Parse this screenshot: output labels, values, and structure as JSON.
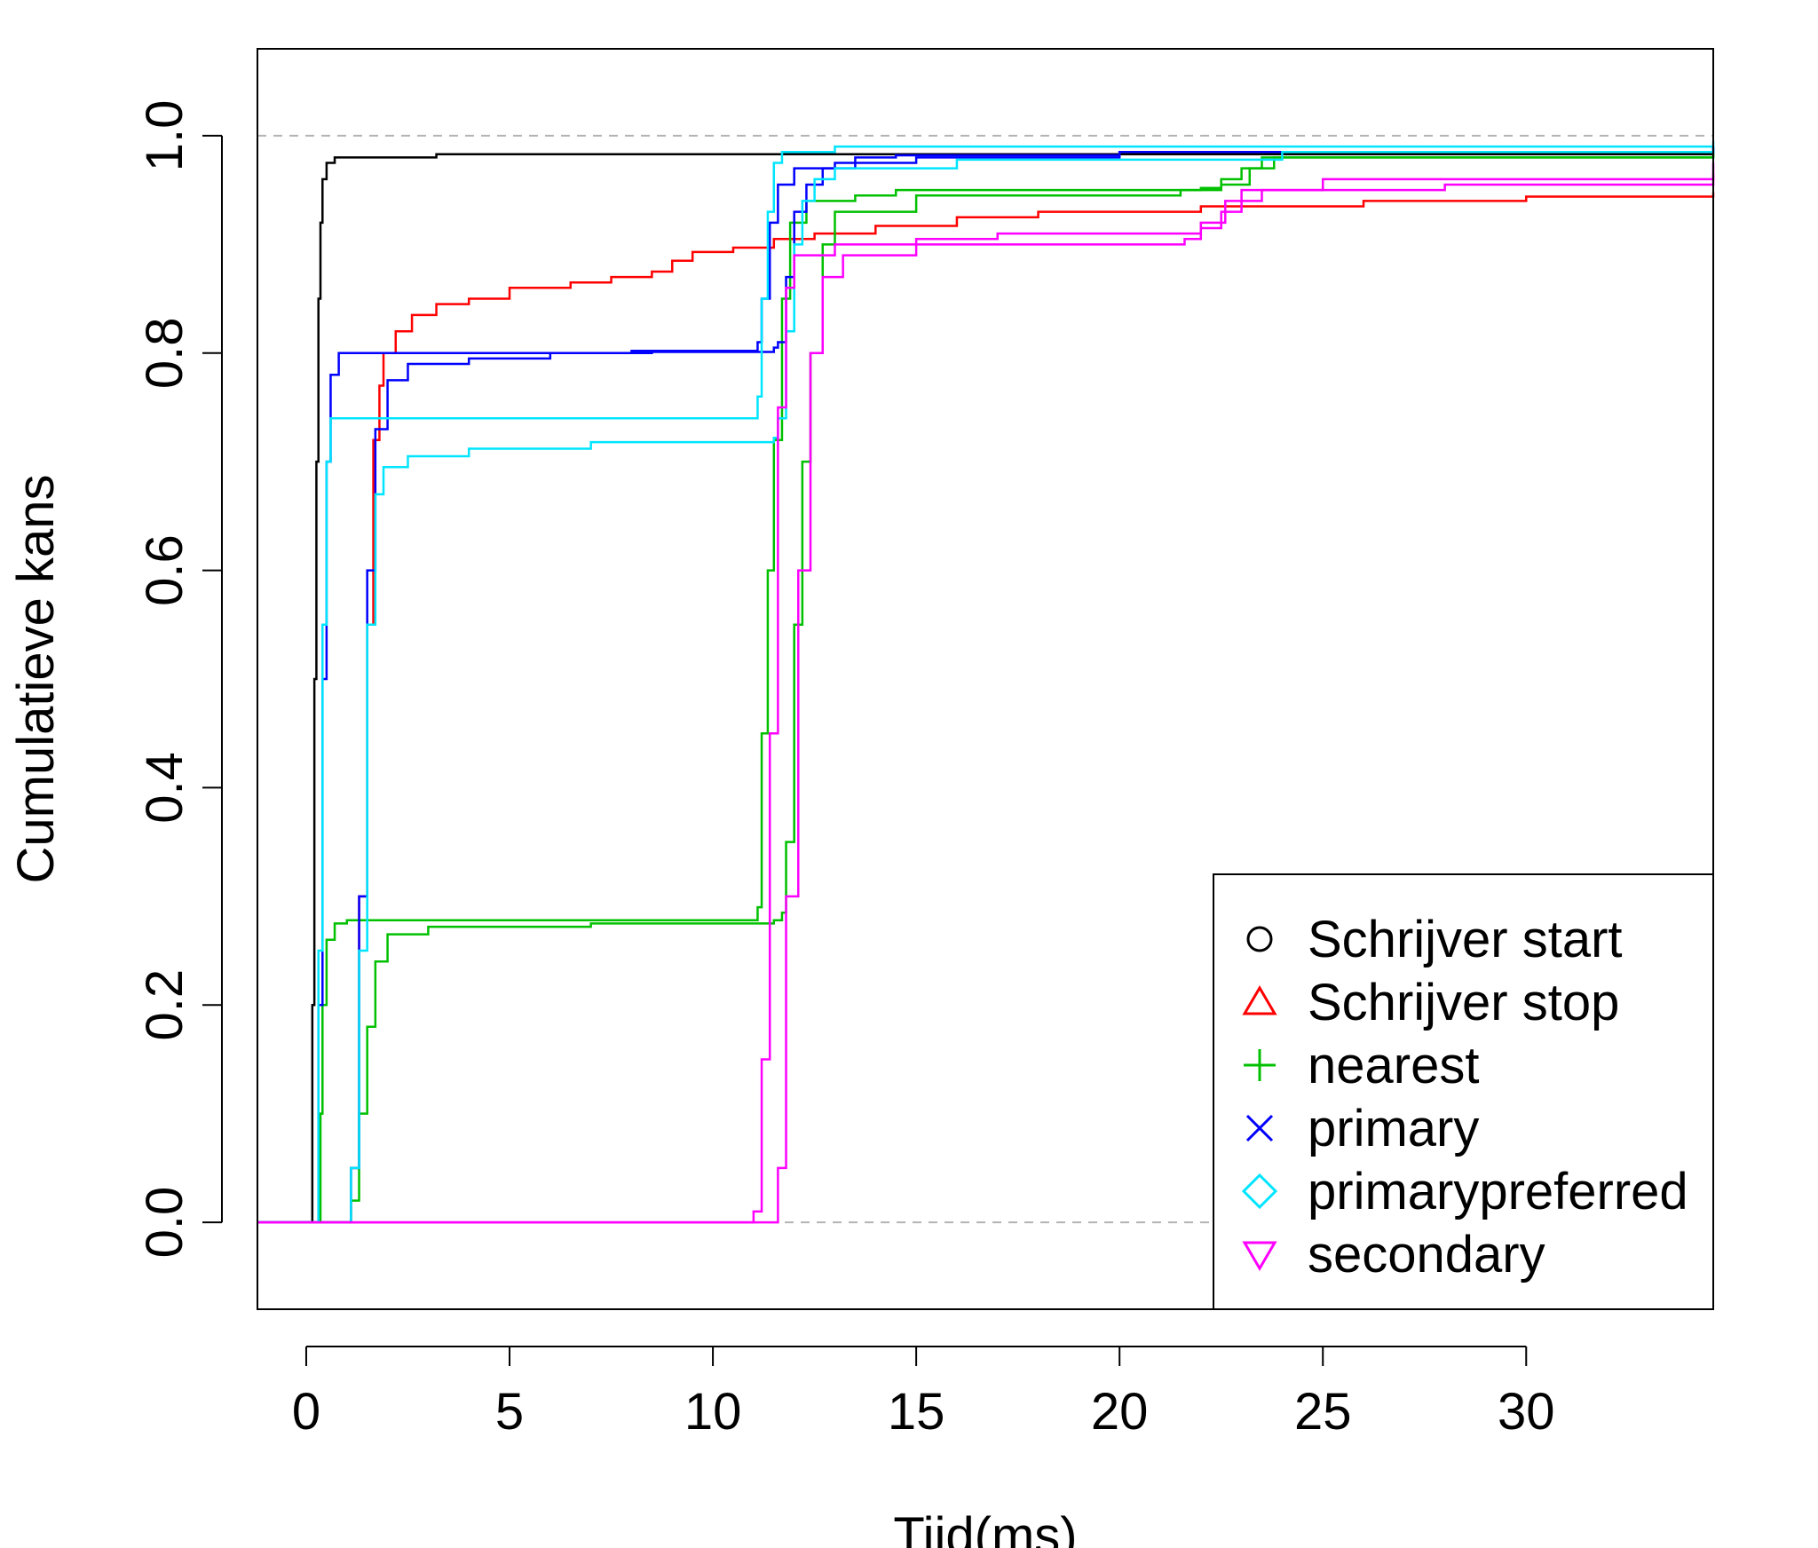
{
  "chart_data": {
    "type": "line",
    "title": "",
    "xlabel": "Tijd(ms)",
    "ylabel": "Cumulatieve kans",
    "xlim": [
      -1.2,
      34.6
    ],
    "ylim": [
      -0.08,
      1.08
    ],
    "xticks": [
      0,
      5,
      10,
      15,
      20,
      25,
      30
    ],
    "yticks": [
      0.0,
      0.2,
      0.4,
      0.6,
      0.8,
      1.0
    ],
    "xtick_labels": [
      "0",
      "5",
      "10",
      "15",
      "20",
      "25",
      "30"
    ],
    "ytick_labels": [
      "0.0",
      "0.2",
      "0.4",
      "0.6",
      "0.8",
      "1.0"
    ],
    "reference_lines": [
      0.0,
      1.0
    ],
    "reference_color": "#b3b3b3",
    "grid": false,
    "legend_position": "bottom-right",
    "series": [
      {
        "name": "Schrijver start",
        "symbol": "circle",
        "color": "#000000",
        "points": [
          [
            -1.2,
            0
          ],
          [
            0.1,
            0
          ],
          [
            0.15,
            0.2
          ],
          [
            0.2,
            0.5
          ],
          [
            0.25,
            0.7
          ],
          [
            0.3,
            0.85
          ],
          [
            0.35,
            0.92
          ],
          [
            0.4,
            0.96
          ],
          [
            0.5,
            0.975
          ],
          [
            0.7,
            0.98
          ],
          [
            1.5,
            0.98
          ],
          [
            3.2,
            0.983
          ],
          [
            34.6,
            0.984
          ]
        ]
      },
      {
        "name": "Schrijver stop",
        "symbol": "triangle",
        "color": "#ff0000",
        "points": [
          [
            -1.2,
            0
          ],
          [
            1.0,
            0
          ],
          [
            1.1,
            0.05
          ],
          [
            1.3,
            0.3
          ],
          [
            1.5,
            0.55
          ],
          [
            1.65,
            0.72
          ],
          [
            1.8,
            0.77
          ],
          [
            1.9,
            0.8
          ],
          [
            2.2,
            0.82
          ],
          [
            2.6,
            0.835
          ],
          [
            3.2,
            0.845
          ],
          [
            4.0,
            0.85
          ],
          [
            5.0,
            0.86
          ],
          [
            6.5,
            0.865
          ],
          [
            7.5,
            0.87
          ],
          [
            8.5,
            0.875
          ],
          [
            9.0,
            0.885
          ],
          [
            9.5,
            0.893
          ],
          [
            10.5,
            0.897
          ],
          [
            11.5,
            0.905
          ],
          [
            12.5,
            0.91
          ],
          [
            14.0,
            0.917
          ],
          [
            16.0,
            0.925
          ],
          [
            18.0,
            0.93
          ],
          [
            22.0,
            0.935
          ],
          [
            26.0,
            0.94
          ],
          [
            30.0,
            0.944
          ],
          [
            34.6,
            0.948
          ]
        ]
      },
      {
        "name": "nearest",
        "symbol": "plus",
        "color": "#00c000",
        "points": [
          [
            -1.2,
            0
          ],
          [
            0.3,
            0
          ],
          [
            0.35,
            0.1
          ],
          [
            0.4,
            0.2
          ],
          [
            0.5,
            0.26
          ],
          [
            0.7,
            0.275
          ],
          [
            1.0,
            0.278
          ],
          [
            11.0,
            0.278
          ],
          [
            11.1,
            0.29
          ],
          [
            11.2,
            0.45
          ],
          [
            11.35,
            0.6
          ],
          [
            11.5,
            0.72
          ],
          [
            11.7,
            0.85
          ],
          [
            11.9,
            0.92
          ],
          [
            12.3,
            0.94
          ],
          [
            13.5,
            0.945
          ],
          [
            14.5,
            0.95
          ],
          [
            16.5,
            0.95
          ],
          [
            22.0,
            0.952
          ],
          [
            22.5,
            0.96
          ],
          [
            23.0,
            0.97
          ],
          [
            23.5,
            0.98
          ],
          [
            26.0,
            0.98
          ],
          [
            34.6,
            0.982
          ]
        ]
      },
      {
        "name": "nearest",
        "symbol": "plus",
        "color": "#00c000",
        "points": [
          [
            -1.2,
            0
          ],
          [
            1.0,
            0
          ],
          [
            1.1,
            0.02
          ],
          [
            1.3,
            0.1
          ],
          [
            1.5,
            0.18
          ],
          [
            1.7,
            0.24
          ],
          [
            2.0,
            0.265
          ],
          [
            3.0,
            0.272
          ],
          [
            7.0,
            0.275
          ],
          [
            11.5,
            0.278
          ],
          [
            11.7,
            0.285
          ],
          [
            11.8,
            0.35
          ],
          [
            12.0,
            0.55
          ],
          [
            12.2,
            0.7
          ],
          [
            12.4,
            0.8
          ],
          [
            12.7,
            0.9
          ],
          [
            13.0,
            0.93
          ],
          [
            15.0,
            0.945
          ],
          [
            21.5,
            0.95
          ],
          [
            22.5,
            0.955
          ],
          [
            23.2,
            0.97
          ],
          [
            23.8,
            0.98
          ],
          [
            34.6,
            0.985
          ]
        ]
      },
      {
        "name": "primary",
        "symbol": "x",
        "color": "#0000ff",
        "points": [
          [
            -1.2,
            0
          ],
          [
            0.2,
            0
          ],
          [
            0.3,
            0.2
          ],
          [
            0.4,
            0.5
          ],
          [
            0.5,
            0.7
          ],
          [
            0.6,
            0.78
          ],
          [
            0.8,
            0.8
          ],
          [
            1.5,
            0.8
          ],
          [
            8.0,
            0.802
          ],
          [
            11.0,
            0.802
          ],
          [
            11.1,
            0.81
          ],
          [
            11.2,
            0.85
          ],
          [
            11.4,
            0.92
          ],
          [
            11.6,
            0.955
          ],
          [
            12.0,
            0.97
          ],
          [
            13.0,
            0.975
          ],
          [
            15.0,
            0.98
          ],
          [
            20.0,
            0.985
          ],
          [
            34.6,
            0.99
          ]
        ]
      },
      {
        "name": "primary",
        "symbol": "x",
        "color": "#0000ff",
        "points": [
          [
            -1.2,
            0
          ],
          [
            1.0,
            0
          ],
          [
            1.1,
            0.05
          ],
          [
            1.3,
            0.3
          ],
          [
            1.5,
            0.6
          ],
          [
            1.7,
            0.73
          ],
          [
            2.0,
            0.775
          ],
          [
            2.5,
            0.79
          ],
          [
            4.0,
            0.795
          ],
          [
            6.0,
            0.8
          ],
          [
            8.5,
            0.801
          ],
          [
            11.5,
            0.805
          ],
          [
            11.6,
            0.81
          ],
          [
            11.8,
            0.87
          ],
          [
            12.0,
            0.93
          ],
          [
            12.3,
            0.955
          ],
          [
            12.7,
            0.97
          ],
          [
            13.5,
            0.98
          ],
          [
            14.5,
            0.982
          ],
          [
            20.0,
            0.985
          ],
          [
            34.6,
            0.99
          ]
        ]
      },
      {
        "name": "primarypreferred",
        "symbol": "diamond",
        "color": "#00e5ff",
        "points": [
          [
            -1.2,
            0
          ],
          [
            0.2,
            0
          ],
          [
            0.3,
            0.25
          ],
          [
            0.4,
            0.55
          ],
          [
            0.5,
            0.7
          ],
          [
            0.6,
            0.74
          ],
          [
            1.0,
            0.74
          ],
          [
            11.0,
            0.74
          ],
          [
            11.1,
            0.76
          ],
          [
            11.2,
            0.85
          ],
          [
            11.35,
            0.93
          ],
          [
            11.5,
            0.975
          ],
          [
            11.7,
            0.985
          ],
          [
            13.0,
            0.99
          ],
          [
            34.6,
            0.995
          ]
        ]
      },
      {
        "name": "primarypreferred",
        "symbol": "diamond",
        "color": "#00e5ff",
        "points": [
          [
            -1.2,
            0
          ],
          [
            1.0,
            0
          ],
          [
            1.1,
            0.05
          ],
          [
            1.3,
            0.25
          ],
          [
            1.5,
            0.55
          ],
          [
            1.7,
            0.67
          ],
          [
            1.9,
            0.695
          ],
          [
            2.5,
            0.705
          ],
          [
            4.0,
            0.712
          ],
          [
            7.0,
            0.718
          ],
          [
            11.5,
            0.722
          ],
          [
            11.6,
            0.74
          ],
          [
            11.8,
            0.82
          ],
          [
            12.0,
            0.9
          ],
          [
            12.2,
            0.94
          ],
          [
            12.5,
            0.96
          ],
          [
            13.0,
            0.97
          ],
          [
            16.0,
            0.978
          ],
          [
            24.0,
            0.985
          ],
          [
            34.6,
            0.99
          ]
        ]
      },
      {
        "name": "secondary",
        "symbol": "triangle-down",
        "color": "#ff00ff",
        "points": [
          [
            -1.2,
            0
          ],
          [
            10.8,
            0
          ],
          [
            11.0,
            0.01
          ],
          [
            11.2,
            0.15
          ],
          [
            11.4,
            0.45
          ],
          [
            11.6,
            0.75
          ],
          [
            11.8,
            0.86
          ],
          [
            12.0,
            0.89
          ],
          [
            13.0,
            0.9
          ],
          [
            15.0,
            0.905
          ],
          [
            17.0,
            0.91
          ],
          [
            22.0,
            0.915
          ],
          [
            22.5,
            0.93
          ],
          [
            23.0,
            0.95
          ],
          [
            25.0,
            0.96
          ],
          [
            34.6,
            0.975
          ]
        ]
      },
      {
        "name": "secondary",
        "symbol": "triangle-down",
        "color": "#ff00ff",
        "points": [
          [
            -1.2,
            0
          ],
          [
            11.4,
            0
          ],
          [
            11.6,
            0.05
          ],
          [
            11.8,
            0.3
          ],
          [
            12.1,
            0.6
          ],
          [
            12.4,
            0.8
          ],
          [
            12.7,
            0.87
          ],
          [
            13.2,
            0.89
          ],
          [
            15.0,
            0.9
          ],
          [
            21.0,
            0.9
          ],
          [
            21.6,
            0.905
          ],
          [
            22.0,
            0.92
          ],
          [
            22.6,
            0.94
          ],
          [
            23.5,
            0.95
          ],
          [
            28.0,
            0.955
          ],
          [
            34.6,
            0.965
          ]
        ]
      }
    ],
    "legend": [
      {
        "label": "Schrijver start",
        "symbol": "circle",
        "color": "#000000"
      },
      {
        "label": "Schrijver stop",
        "symbol": "triangle",
        "color": "#ff0000"
      },
      {
        "label": "nearest",
        "symbol": "plus",
        "color": "#00c000"
      },
      {
        "label": "primary",
        "symbol": "x",
        "color": "#0000ff"
      },
      {
        "label": "primarypreferred",
        "symbol": "diamond",
        "color": "#00e5ff"
      },
      {
        "label": "secondary",
        "symbol": "triangle-down",
        "color": "#ff00ff"
      }
    ]
  }
}
